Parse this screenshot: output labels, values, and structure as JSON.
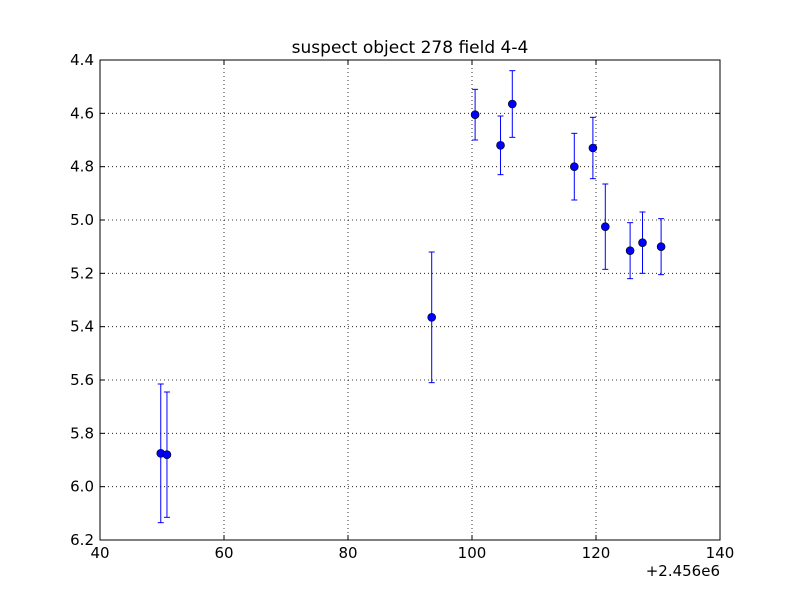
{
  "chart_data": {
    "type": "scatter",
    "title": "suspect object 278 field 4-4",
    "xlabel": "",
    "ylabel": "",
    "x_offset_label": "+2.456e6",
    "xlim": [
      40,
      140
    ],
    "ylim": [
      6.2,
      4.4
    ],
    "y_inverted": true,
    "grid": true,
    "x_ticks": [
      "40",
      "60",
      "80",
      "100",
      "120",
      "140"
    ],
    "y_ticks": [
      "4.4",
      "4.6",
      "4.8",
      "5.0",
      "5.2",
      "5.4",
      "5.6",
      "5.8",
      "6.0",
      "6.2"
    ],
    "marker_color": "#0000ff",
    "points": [
      {
        "x": 49.8,
        "y": 5.875,
        "err": 0.26
      },
      {
        "x": 50.8,
        "y": 5.88,
        "err": 0.235
      },
      {
        "x": 93.5,
        "y": 5.365,
        "err": 0.245
      },
      {
        "x": 100.5,
        "y": 4.605,
        "err": 0.095
      },
      {
        "x": 104.6,
        "y": 4.72,
        "err": 0.11
      },
      {
        "x": 106.5,
        "y": 4.565,
        "err": 0.125
      },
      {
        "x": 116.5,
        "y": 4.8,
        "err": 0.125
      },
      {
        "x": 119.5,
        "y": 4.73,
        "err": 0.115
      },
      {
        "x": 121.5,
        "y": 5.025,
        "err": 0.16
      },
      {
        "x": 125.5,
        "y": 5.115,
        "err": 0.105
      },
      {
        "x": 127.5,
        "y": 5.085,
        "err": 0.115
      },
      {
        "x": 130.5,
        "y": 5.1,
        "err": 0.105
      }
    ]
  }
}
